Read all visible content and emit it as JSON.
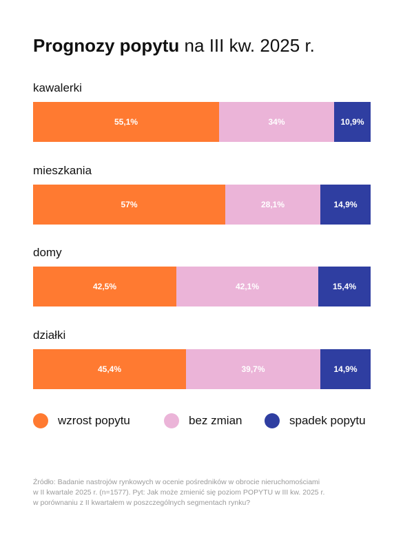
{
  "title": {
    "bold": "Prognozy popytu",
    "rest": " na III kw. 2025 r."
  },
  "colors": {
    "wzrost": "#ff7a31",
    "bez_zmian": "#ebb4d8",
    "spadek": "#2f3ea1"
  },
  "chart_data": {
    "type": "bar",
    "stacked": true,
    "orientation": "horizontal",
    "unit": "%",
    "categories": [
      "kawalerki",
      "mieszkania",
      "domy",
      "działki"
    ],
    "series": [
      {
        "name": "wzrost popytu",
        "values": [
          55.1,
          57,
          42.5,
          45.4
        ],
        "labels": [
          "55,1%",
          "57%",
          "42,5%",
          "45,4%"
        ],
        "color": "#ff7a31"
      },
      {
        "name": "bez zmian",
        "values": [
          34,
          28.1,
          42.1,
          39.7
        ],
        "labels": [
          "34%",
          "28,1%",
          "42,1%",
          "39,7%"
        ],
        "color": "#ebb4d8"
      },
      {
        "name": "spadek popytu",
        "values": [
          10.9,
          14.9,
          15.4,
          14.9
        ],
        "labels": [
          "10,9%",
          "14,9%",
          "15,4%",
          "14,9%"
        ],
        "color": "#2f3ea1"
      }
    ],
    "legend_position": "bottom"
  },
  "legend": [
    {
      "label": "wzrost popytu",
      "color": "#ff7a31"
    },
    {
      "label": "bez zmian",
      "color": "#ebb4d8"
    },
    {
      "label": "spadek popytu",
      "color": "#2f3ea1"
    }
  ],
  "footer": {
    "lines": [
      "Źródło: Badanie nastrojów rynkowych w ocenie pośredników w obrocie nieruchomościami",
      "w II kwartale 2025 r. (n=1577). Pyt: Jak może zmienić się poziom POPYTU w III kw. 2025 r.",
      "w porównaniu z II kwartałem w poszczególnych segmentach rynku?"
    ]
  }
}
